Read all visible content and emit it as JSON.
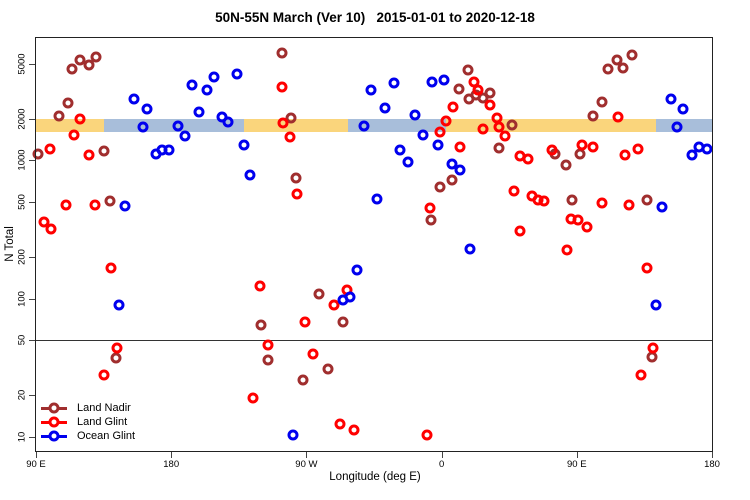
{
  "chart_data": {
    "type": "scatter",
    "title": "50N-55N March (Ver 10)   2015-01-01 to 2020-12-18",
    "xlabel": "Longitude (deg E)",
    "ylabel": "N Total",
    "y_scale": "log10",
    "ylim": [
      7.9,
      7700
    ],
    "y_ticks": [
      5000,
      2000,
      1000,
      500,
      200,
      100,
      50,
      20,
      10
    ],
    "x_axis": {
      "deg_span": 450,
      "ticks": [
        {
          "deg": 0,
          "label": "90 E"
        },
        {
          "deg": 90,
          "label": "180"
        },
        {
          "deg": 180,
          "label": "90 W"
        },
        {
          "deg": 270,
          "label": "0"
        },
        {
          "deg": 360,
          "label": "90 E"
        },
        {
          "deg": 450,
          "label": "180"
        }
      ]
    },
    "reference_line_y": 50,
    "grid": false,
    "legend_position": "bottom-left",
    "surface_band": {
      "value_range": [
        1610,
        2000
      ],
      "segments": [
        {
          "from_deg": 0,
          "to_deg": 45.5,
          "type": "land"
        },
        {
          "from_deg": 45.5,
          "to_deg": 138.6,
          "type": "ocean"
        },
        {
          "from_deg": 138.6,
          "to_deg": 207.8,
          "type": "land"
        },
        {
          "from_deg": 207.8,
          "to_deg": 273,
          "type": "ocean"
        },
        {
          "from_deg": 273,
          "to_deg": 412.6,
          "type": "land"
        },
        {
          "from_deg": 412.6,
          "to_deg": 450,
          "type": "ocean"
        }
      ]
    },
    "series": [
      {
        "name": "Land Nadir",
        "color": "#A02E2E",
        "points": [
          [
            24,
            4600
          ],
          [
            29.5,
            5350
          ],
          [
            35,
            4900
          ],
          [
            40,
            5600
          ],
          [
            21,
            2600
          ],
          [
            15,
            2100
          ],
          [
            1.5,
            1110
          ],
          [
            45,
            1170
          ],
          [
            49.5,
            510
          ],
          [
            164,
            6000
          ],
          [
            170,
            2030
          ],
          [
            173,
            750
          ],
          [
            287.5,
            4500
          ],
          [
            281.5,
            3300
          ],
          [
            288,
            2800
          ],
          [
            293,
            3000
          ],
          [
            297.5,
            2840
          ],
          [
            302,
            3100
          ],
          [
            317,
            1810
          ],
          [
            308,
            1230
          ],
          [
            345.5,
            1110
          ],
          [
            352.5,
            930
          ],
          [
            362,
            1110
          ],
          [
            380.5,
            4600
          ],
          [
            386.5,
            5350
          ],
          [
            390.5,
            4700
          ],
          [
            396.5,
            5800
          ],
          [
            377,
            2650
          ],
          [
            370.5,
            2100
          ],
          [
            356.5,
            520
          ],
          [
            406.5,
            520
          ],
          [
            269,
            640
          ],
          [
            277,
            720
          ],
          [
            263,
            370
          ],
          [
            53,
            37
          ],
          [
            150,
            64
          ],
          [
            154.5,
            36
          ],
          [
            188.5,
            108
          ],
          [
            194.5,
            31
          ],
          [
            178,
            26
          ],
          [
            204.5,
            68
          ],
          [
            410,
            38
          ]
        ]
      },
      {
        "name": "Land Glint",
        "color": "#FF0000",
        "points": [
          [
            29,
            2000
          ],
          [
            25,
            1530
          ],
          [
            35,
            1100
          ],
          [
            9.5,
            1210
          ],
          [
            20,
            480
          ],
          [
            39,
            480
          ],
          [
            5.5,
            360
          ],
          [
            10,
            320
          ],
          [
            164,
            3400
          ],
          [
            164.5,
            1870
          ],
          [
            169,
            1480
          ],
          [
            174,
            570
          ],
          [
            277.5,
            2450
          ],
          [
            291.5,
            3700
          ],
          [
            294,
            3250
          ],
          [
            302,
            2530
          ],
          [
            307,
            2030
          ],
          [
            308,
            1750
          ],
          [
            297.5,
            1690
          ],
          [
            312,
            1510
          ],
          [
            282,
            1250
          ],
          [
            273,
            1940
          ],
          [
            269,
            1610
          ],
          [
            322,
            1080
          ],
          [
            327.5,
            1030
          ],
          [
            343.5,
            1190
          ],
          [
            363.5,
            1300
          ],
          [
            370.5,
            1250
          ],
          [
            387.5,
            2070
          ],
          [
            392,
            1100
          ],
          [
            400.5,
            1210
          ],
          [
            318,
            600
          ],
          [
            330,
            550
          ],
          [
            334.5,
            520
          ],
          [
            338,
            510
          ],
          [
            356,
            380
          ],
          [
            361,
            370
          ],
          [
            366.5,
            330
          ],
          [
            377,
            490
          ],
          [
            394.5,
            480
          ],
          [
            322,
            310
          ],
          [
            262.5,
            450
          ],
          [
            50,
            166
          ],
          [
            54,
            44
          ],
          [
            45,
            28
          ],
          [
            149,
            123
          ],
          [
            154.5,
            46
          ],
          [
            144.5,
            19
          ],
          [
            179,
            68
          ],
          [
            184.5,
            40
          ],
          [
            198.5,
            90
          ],
          [
            207,
            115
          ],
          [
            202.5,
            12.3
          ],
          [
            211.5,
            11.3
          ],
          [
            353.5,
            225
          ],
          [
            407,
            166
          ],
          [
            411,
            44
          ],
          [
            402.5,
            28
          ],
          [
            260,
            10.3
          ]
        ]
      },
      {
        "name": "Ocean Glint",
        "color": "#0000EE",
        "points": [
          [
            65,
            2800
          ],
          [
            74,
            2360
          ],
          [
            71,
            1750
          ],
          [
            94.5,
            1780
          ],
          [
            99.5,
            1510
          ],
          [
            104,
            3500
          ],
          [
            114,
            3250
          ],
          [
            118.5,
            4000
          ],
          [
            108.5,
            2250
          ],
          [
            124,
            2070
          ],
          [
            128,
            1900
          ],
          [
            134,
            4200
          ],
          [
            138.5,
            1300
          ],
          [
            142.5,
            790
          ],
          [
            80,
            1110
          ],
          [
            84,
            1190
          ],
          [
            88.5,
            1190
          ],
          [
            59.5,
            470
          ],
          [
            223,
            3250
          ],
          [
            218.5,
            1780
          ],
          [
            238.5,
            3650
          ],
          [
            232.5,
            2400
          ],
          [
            263.5,
            3700
          ],
          [
            271.5,
            3800
          ],
          [
            252.5,
            2140
          ],
          [
            257.5,
            1530
          ],
          [
            267.5,
            1300
          ],
          [
            242.5,
            1190
          ],
          [
            247.5,
            980
          ],
          [
            277,
            940
          ],
          [
            282,
            850
          ],
          [
            423,
            2800
          ],
          [
            430.5,
            2360
          ],
          [
            426.5,
            1750
          ],
          [
            437,
            1100
          ],
          [
            441.5,
            1250
          ],
          [
            446.5,
            1210
          ],
          [
            416.5,
            460
          ],
          [
            227,
            530
          ],
          [
            55,
            90
          ],
          [
            204.5,
            98
          ],
          [
            209,
            103
          ],
          [
            213.5,
            161
          ],
          [
            171,
            10.3
          ],
          [
            289,
            230
          ],
          [
            412.5,
            90
          ]
        ]
      }
    ]
  },
  "colors": {
    "land_band": "#FAD57C",
    "ocean_band": "#A8BEDA",
    "axis": "#222222",
    "reference_line": "#333333"
  }
}
